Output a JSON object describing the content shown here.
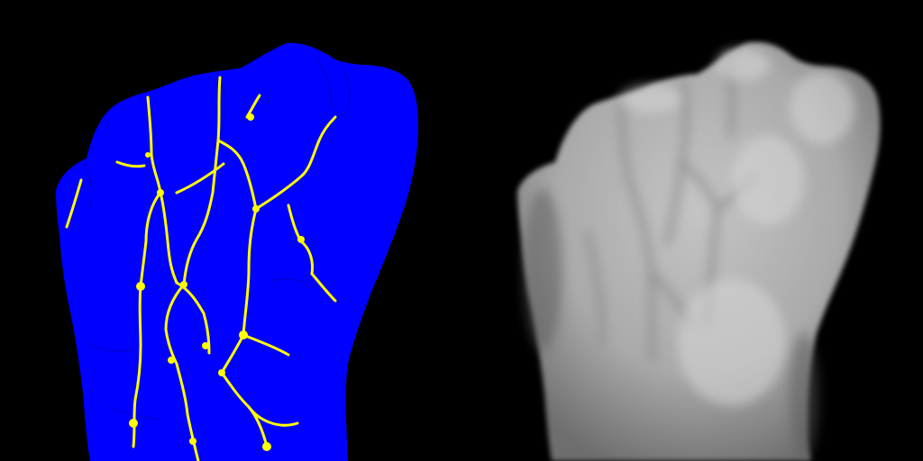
{
  "image": {
    "description_panels": [
      "segmentation-overlay",
      "grayscale-source"
    ],
    "colors": {
      "background": "#000000",
      "mask": "#0000ff",
      "veins": "#ffff00",
      "skin_light": "#c8c8c8",
      "skin_mid": "#a6a6a6",
      "skin_dark": "#7a7a7a"
    }
  }
}
